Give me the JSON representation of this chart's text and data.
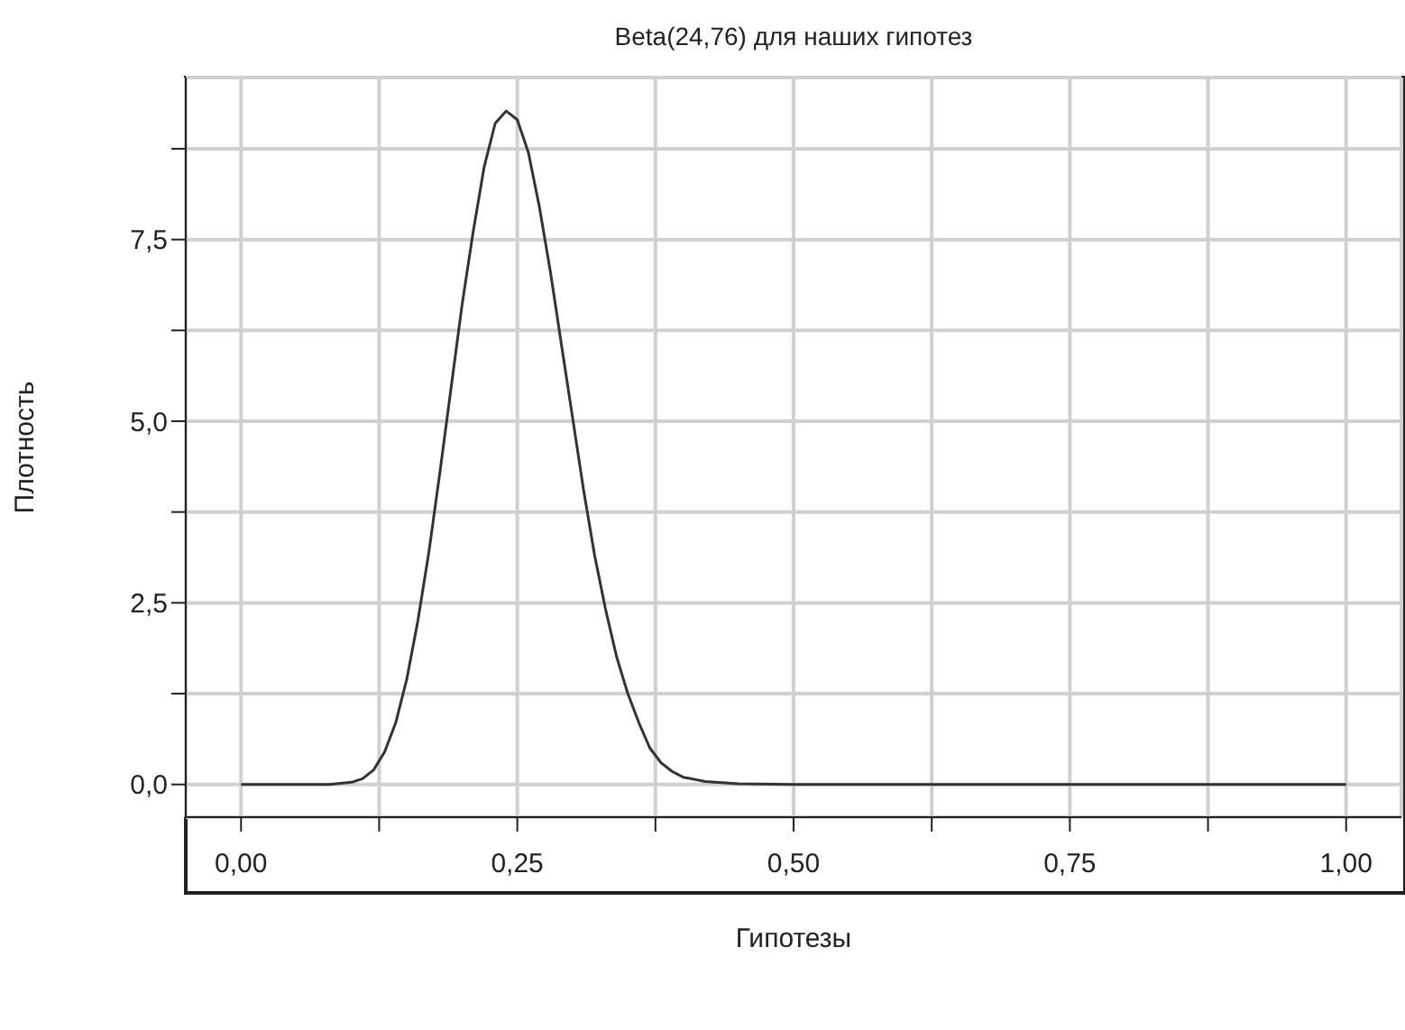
{
  "chart_data": {
    "type": "line",
    "title": "Beta(24,76) для наших гипотез",
    "xlabel": "Гипотезы",
    "ylabel": "Плотность",
    "x": [
      0,
      0.05,
      0.08,
      0.1,
      0.11,
      0.12,
      0.13,
      0.14,
      0.15,
      0.16,
      0.17,
      0.18,
      0.19,
      0.2,
      0.21,
      0.22,
      0.23,
      0.24,
      0.25,
      0.26,
      0.27,
      0.28,
      0.29,
      0.3,
      0.31,
      0.32,
      0.33,
      0.34,
      0.35,
      0.36,
      0.37,
      0.38,
      0.39,
      0.4,
      0.42,
      0.45,
      0.5,
      0.6,
      0.7,
      0.8,
      0.9,
      1
    ],
    "series": [
      {
        "color": "#333333",
        "values": [
          0,
          0,
          0,
          0.03,
          0.08,
          0.2,
          0.45,
          0.85,
          1.45,
          2.25,
          3.2,
          4.3,
          5.45,
          6.6,
          7.6,
          8.5,
          9.1,
          9.27,
          9.15,
          8.7,
          7.95,
          7.05,
          6.05,
          5.05,
          4.05,
          3.15,
          2.4,
          1.75,
          1.25,
          0.85,
          0.5,
          0.3,
          0.18,
          0.1,
          0.04,
          0.01,
          0,
          0,
          0,
          0,
          0,
          0
        ]
      }
    ],
    "xlim": [
      -0.05,
      1.05
    ],
    "xticks": [
      {
        "value": 0,
        "label": "0,00"
      },
      {
        "value": 0.125,
        "label": null
      },
      {
        "value": 0.25,
        "label": "0,25"
      },
      {
        "value": 0.375,
        "label": null
      },
      {
        "value": 0.5,
        "label": "0,50"
      },
      {
        "value": 0.625,
        "label": null
      },
      {
        "value": 0.75,
        "label": "0,75"
      },
      {
        "value": 0.875,
        "label": null
      },
      {
        "value": 1,
        "label": "1,00"
      }
    ],
    "ylim": [
      -0.45,
      9.73
    ],
    "yticks": [
      {
        "value": 0,
        "label": "0,0"
      },
      {
        "value": 1.25,
        "label": null
      },
      {
        "value": 2.5,
        "label": "2,5"
      },
      {
        "value": 3.75,
        "label": null
      },
      {
        "value": 5,
        "label": "5,0"
      },
      {
        "value": 6.25,
        "label": null
      },
      {
        "value": 7.5,
        "label": "7,5"
      },
      {
        "value": 8.75,
        "label": null
      }
    ],
    "grid": true,
    "marker": "none",
    "line_style": "solid",
    "legend": false
  }
}
